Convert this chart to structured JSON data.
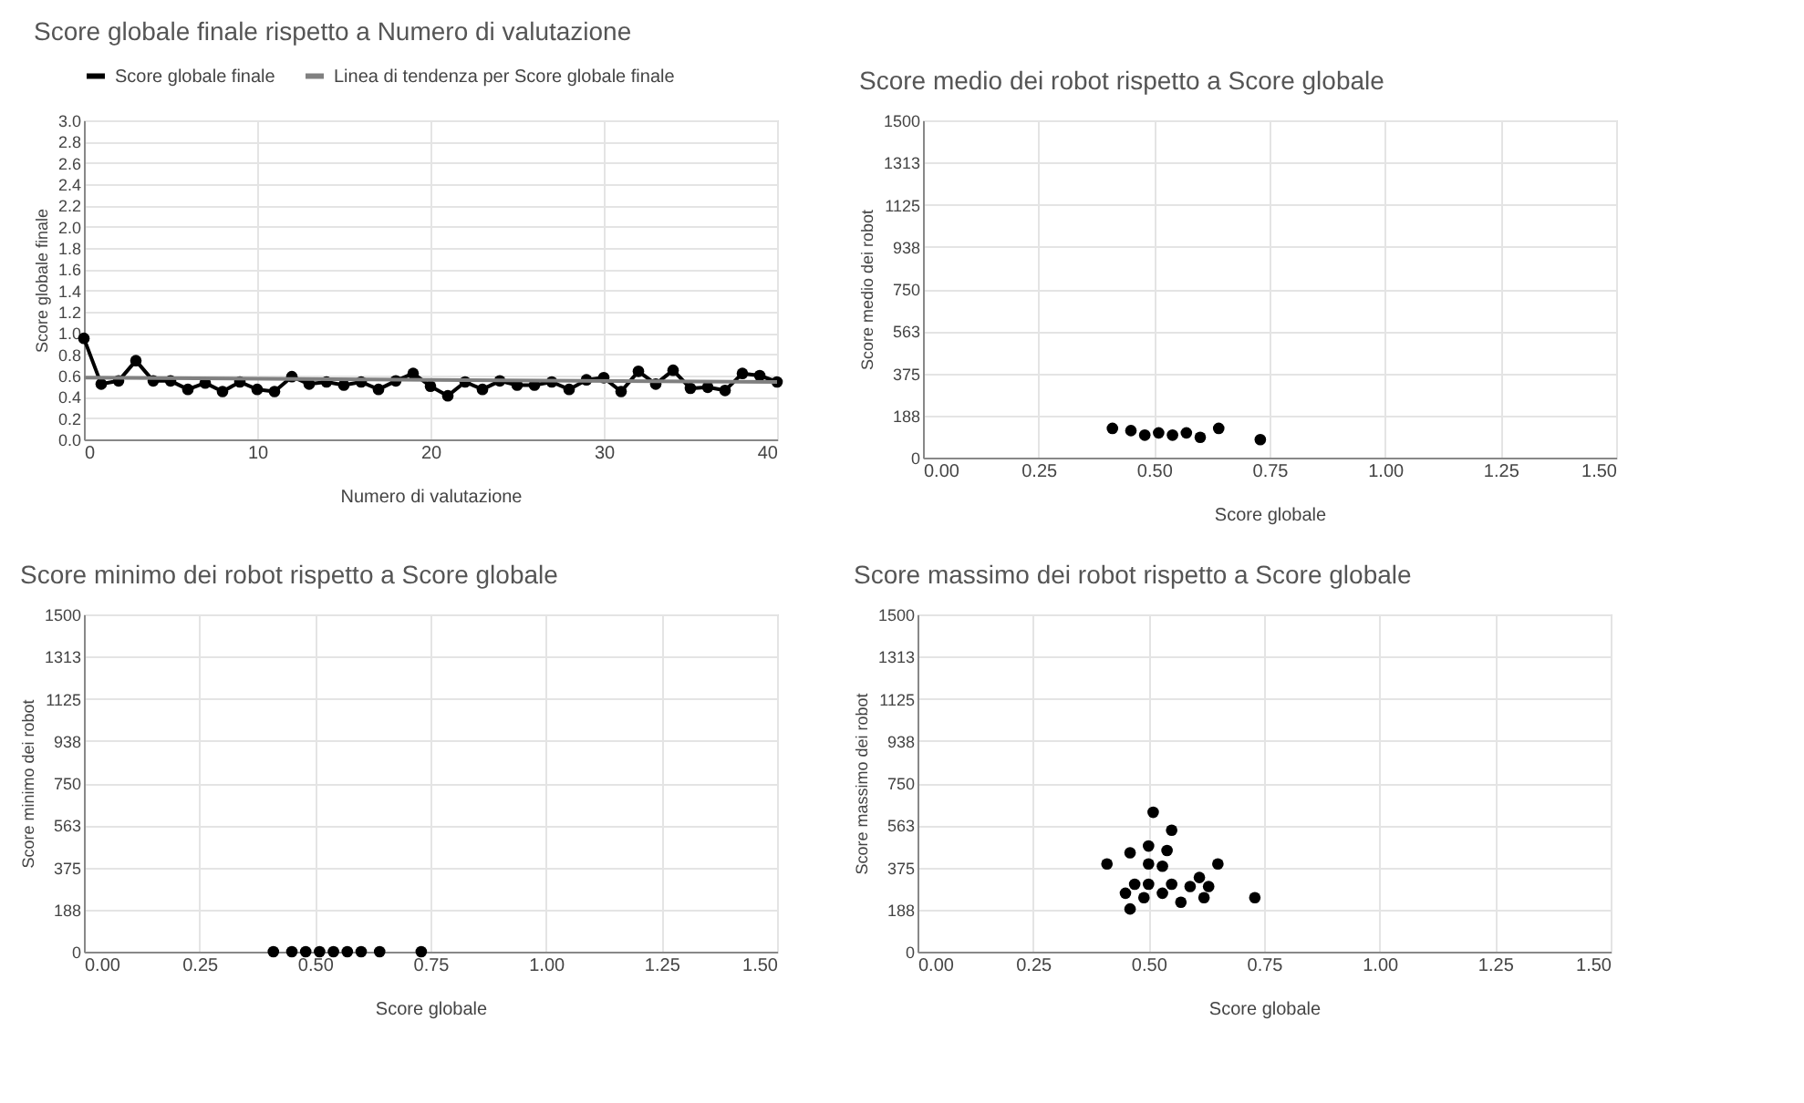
{
  "chart_data": [
    {
      "type": "line",
      "title": "Score globale finale rispetto a Numero di valutazione",
      "xlabel": "Numero di valutazione",
      "ylabel": "Score globale finale",
      "xlim": [
        0,
        40
      ],
      "xticks": [
        0,
        10,
        20,
        30,
        40
      ],
      "ylim": [
        0,
        3
      ],
      "yticks": [
        {
          "value": 0,
          "label": "0.0"
        },
        0.2,
        0.4,
        0.6,
        0.8,
        {
          "value": 1,
          "label": "1.0"
        },
        1.2,
        1.4,
        1.6,
        1.8,
        {
          "value": 2,
          "label": "2.0"
        },
        2.2,
        2.4,
        2.6,
        2.8,
        {
          "value": 3,
          "label": "3.0"
        }
      ],
      "grid": true,
      "legend": "top",
      "series": [
        {
          "name": "Score globale finale",
          "color": "#000000",
          "marker": "circle",
          "x": [
            0,
            1,
            2,
            3,
            4,
            5,
            6,
            7,
            8,
            9,
            10,
            11,
            12,
            13,
            14,
            15,
            16,
            17,
            18,
            19,
            20,
            21,
            22,
            23,
            24,
            25,
            26,
            27,
            28,
            29,
            30,
            31,
            32,
            33,
            34,
            35,
            36,
            37,
            38,
            39,
            40
          ],
          "values": [
            0.95,
            0.52,
            0.55,
            0.74,
            0.55,
            0.55,
            0.47,
            0.53,
            0.45,
            0.54,
            0.47,
            0.45,
            0.59,
            0.52,
            0.54,
            0.51,
            0.54,
            0.47,
            0.55,
            0.62,
            0.5,
            0.41,
            0.54,
            0.47,
            0.55,
            0.51,
            0.51,
            0.54,
            0.47,
            0.56,
            0.58,
            0.45,
            0.64,
            0.52,
            0.65,
            0.48,
            0.49,
            0.46,
            0.62,
            0.6,
            0.54
          ]
        },
        {
          "name": "Linea di tendenza per Score globale finale",
          "type": "line",
          "color": "#808080",
          "marker": "none",
          "x": [
            0,
            40
          ],
          "values": [
            0.58,
            0.54
          ]
        }
      ]
    },
    {
      "type": "scatter",
      "title": "Score medio dei robot rispetto a Score globale",
      "xlabel": "Score globale",
      "ylabel": "Score medio dei robot",
      "xlim": [
        0,
        1.5
      ],
      "xticks": [
        {
          "value": 0,
          "label": "0.00"
        },
        {
          "value": 0.25,
          "label": "0.25"
        },
        {
          "value": 0.5,
          "label": "0.50"
        },
        {
          "value": 0.75,
          "label": "0.75"
        },
        {
          "value": 1,
          "label": "1.00"
        },
        {
          "value": 1.25,
          "label": "1.25"
        },
        {
          "value": 1.5,
          "label": "1.50"
        }
      ],
      "ylim": [
        0,
        1500
      ],
      "yticks": [
        0,
        {
          "value": 187.5,
          "label": "188"
        },
        375,
        {
          "value": 562.5,
          "label": "563"
        },
        750,
        {
          "value": 937.5,
          "label": "938"
        },
        1125,
        {
          "value": 1312.5,
          "label": "1313"
        },
        1500
      ],
      "grid": true,
      "marker": "circle",
      "color": "#000000",
      "x": [
        0.41,
        0.45,
        0.48,
        0.51,
        0.54,
        0.57,
        0.6,
        0.64,
        0.73
      ],
      "values": [
        130,
        120,
        100,
        110,
        100,
        110,
        90,
        130,
        80
      ]
    },
    {
      "type": "scatter",
      "title": "Score minimo dei robot rispetto a Score globale",
      "xlabel": "Score globale",
      "ylabel": "Score minimo dei robot",
      "xlim": [
        0,
        1.5
      ],
      "xticks": [
        {
          "value": 0,
          "label": "0.00"
        },
        {
          "value": 0.25,
          "label": "0.25"
        },
        {
          "value": 0.5,
          "label": "0.50"
        },
        {
          "value": 0.75,
          "label": "0.75"
        },
        {
          "value": 1,
          "label": "1.00"
        },
        {
          "value": 1.25,
          "label": "1.25"
        },
        {
          "value": 1.5,
          "label": "1.50"
        }
      ],
      "ylim": [
        0,
        1500
      ],
      "yticks": [
        0,
        {
          "value": 187.5,
          "label": "188"
        },
        375,
        {
          "value": 562.5,
          "label": "563"
        },
        750,
        {
          "value": 937.5,
          "label": "938"
        },
        1125,
        {
          "value": 1312.5,
          "label": "1313"
        },
        1500
      ],
      "grid": true,
      "marker": "circle",
      "color": "#000000",
      "x": [
        0.41,
        0.45,
        0.48,
        0.51,
        0.54,
        0.57,
        0.6,
        0.64,
        0.73
      ],
      "values": [
        0,
        0,
        0,
        0,
        0,
        0,
        0,
        0,
        0
      ]
    },
    {
      "type": "scatter",
      "title": "Score massimo dei robot rispetto a Score globale",
      "xlabel": "Score globale",
      "ylabel": "Score massimo dei robot",
      "xlim": [
        0,
        1.5
      ],
      "xticks": [
        {
          "value": 0,
          "label": "0.00"
        },
        {
          "value": 0.25,
          "label": "0.25"
        },
        {
          "value": 0.5,
          "label": "0.50"
        },
        {
          "value": 0.75,
          "label": "0.75"
        },
        {
          "value": 1,
          "label": "1.00"
        },
        {
          "value": 1.25,
          "label": "1.25"
        },
        {
          "value": 1.5,
          "label": "1.50"
        }
      ],
      "ylim": [
        0,
        1500
      ],
      "yticks": [
        0,
        {
          "value": 187.5,
          "label": "188"
        },
        375,
        {
          "value": 562.5,
          "label": "563"
        },
        750,
        {
          "value": 937.5,
          "label": "938"
        },
        1125,
        {
          "value": 1312.5,
          "label": "1313"
        },
        1500
      ],
      "grid": true,
      "marker": "circle",
      "color": "#000000",
      "x": [
        0.41,
        0.46,
        0.51,
        0.55,
        0.5,
        0.54,
        0.65,
        0.73,
        0.62,
        0.57,
        0.45,
        0.46,
        0.49,
        0.5,
        0.53,
        0.53,
        0.55,
        0.59,
        0.61,
        0.63,
        0.5,
        0.47
      ],
      "values": [
        390,
        440,
        620,
        540,
        470,
        450,
        390,
        240,
        240,
        220,
        260,
        190,
        240,
        300,
        260,
        380,
        300,
        290,
        330,
        290,
        390,
        300
      ]
    }
  ]
}
